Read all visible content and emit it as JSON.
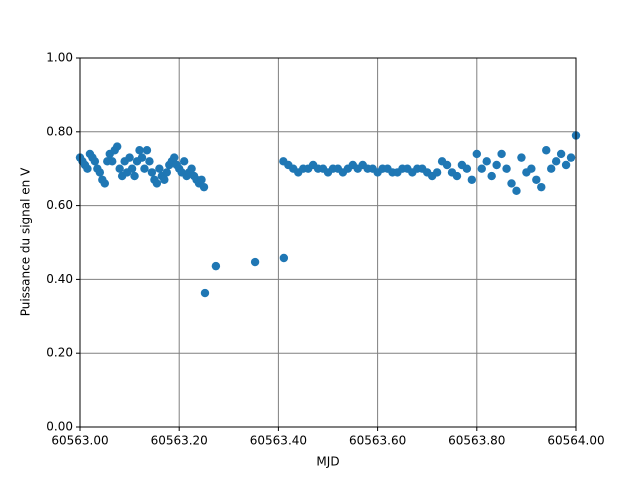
{
  "chart_data": {
    "type": "scatter",
    "x_label": "MJD",
    "y_label": "Puissance du signal en V",
    "color": "#1f77b4",
    "grid": true,
    "xlim": [
      60563,
      60564
    ],
    "ylim": [
      0,
      1
    ],
    "xticks": [
      {
        "value": 60563,
        "label": "60563.00"
      },
      {
        "value": 60563.2,
        "label": "60563.20"
      },
      {
        "value": 60563.4,
        "label": "60563.40"
      },
      {
        "value": 60563.6,
        "label": "60563.60"
      },
      {
        "value": 60563.8,
        "label": "60563.80"
      },
      {
        "value": 60564,
        "label": "60564.00"
      }
    ],
    "yticks": [
      {
        "value": 0,
        "label": "0.00"
      },
      {
        "value": 0.2,
        "label": "0.20"
      },
      {
        "value": 0.4,
        "label": "0.40"
      },
      {
        "value": 0.6,
        "label": "0.60"
      },
      {
        "value": 0.8,
        "label": "0.80"
      },
      {
        "value": 1,
        "label": "1.00"
      }
    ],
    "x": [
      60563.0,
      60563.005,
      60563.01,
      60563.015,
      60563.02,
      60563.025,
      60563.03,
      60563.035,
      60563.04,
      60563.045,
      60563.05,
      60563.055,
      60563.06,
      60563.065,
      60563.07,
      60563.075,
      60563.08,
      60563.085,
      60563.09,
      60563.095,
      60563.1,
      60563.105,
      60563.11,
      60563.115,
      60563.12,
      60563.125,
      60563.13,
      60563.135,
      60563.14,
      60563.145,
      60563.15,
      60563.155,
      60563.16,
      60563.165,
      60563.17,
      60563.175,
      60563.18,
      60563.185,
      60563.19,
      60563.195,
      60563.2,
      60563.205,
      60563.21,
      60563.215,
      60563.22,
      60563.225,
      60563.23,
      60563.235,
      60563.24,
      60563.245,
      60563.25,
      60563.252,
      60563.274,
      60563.353,
      60563.411,
      60563.41,
      60563.42,
      60563.43,
      60563.44,
      60563.45,
      60563.46,
      60563.47,
      60563.48,
      60563.49,
      60563.5,
      60563.51,
      60563.52,
      60563.53,
      60563.54,
      60563.55,
      60563.56,
      60563.57,
      60563.58,
      60563.59,
      60563.6,
      60563.61,
      60563.62,
      60563.63,
      60563.64,
      60563.65,
      60563.66,
      60563.67,
      60563.68,
      60563.69,
      60563.7,
      60563.71,
      60563.72,
      60563.73,
      60563.74,
      60563.75,
      60563.76,
      60563.77,
      60563.78,
      60563.79,
      60563.8,
      60563.81,
      60563.82,
      60563.83,
      60563.84,
      60563.85,
      60563.86,
      60563.87,
      60563.88,
      60563.89,
      60563.9,
      60563.91,
      60563.92,
      60563.93,
      60563.94,
      60563.95,
      60563.96,
      60563.97,
      60563.98,
      60563.99,
      60564.0
    ],
    "values": [
      0.73,
      0.72,
      0.71,
      0.7,
      0.74,
      0.73,
      0.72,
      0.7,
      0.69,
      0.67,
      0.66,
      0.72,
      0.74,
      0.72,
      0.75,
      0.76,
      0.7,
      0.68,
      0.72,
      0.69,
      0.73,
      0.7,
      0.68,
      0.72,
      0.75,
      0.73,
      0.7,
      0.75,
      0.72,
      0.69,
      0.67,
      0.66,
      0.7,
      0.68,
      0.67,
      0.69,
      0.71,
      0.72,
      0.73,
      0.71,
      0.7,
      0.69,
      0.72,
      0.68,
      0.69,
      0.7,
      0.68,
      0.67,
      0.66,
      0.67,
      0.65,
      0.363,
      0.436,
      0.447,
      0.458,
      0.72,
      0.71,
      0.7,
      0.69,
      0.7,
      0.7,
      0.71,
      0.7,
      0.7,
      0.69,
      0.7,
      0.7,
      0.69,
      0.7,
      0.71,
      0.7,
      0.71,
      0.7,
      0.7,
      0.69,
      0.7,
      0.7,
      0.69,
      0.69,
      0.7,
      0.7,
      0.69,
      0.7,
      0.7,
      0.69,
      0.68,
      0.69,
      0.72,
      0.71,
      0.69,
      0.68,
      0.71,
      0.7,
      0.67,
      0.74,
      0.7,
      0.72,
      0.68,
      0.71,
      0.74,
      0.7,
      0.66,
      0.64,
      0.73,
      0.69,
      0.7,
      0.67,
      0.65,
      0.75,
      0.7,
      0.72,
      0.74,
      0.71,
      0.73,
      0.79
    ]
  }
}
